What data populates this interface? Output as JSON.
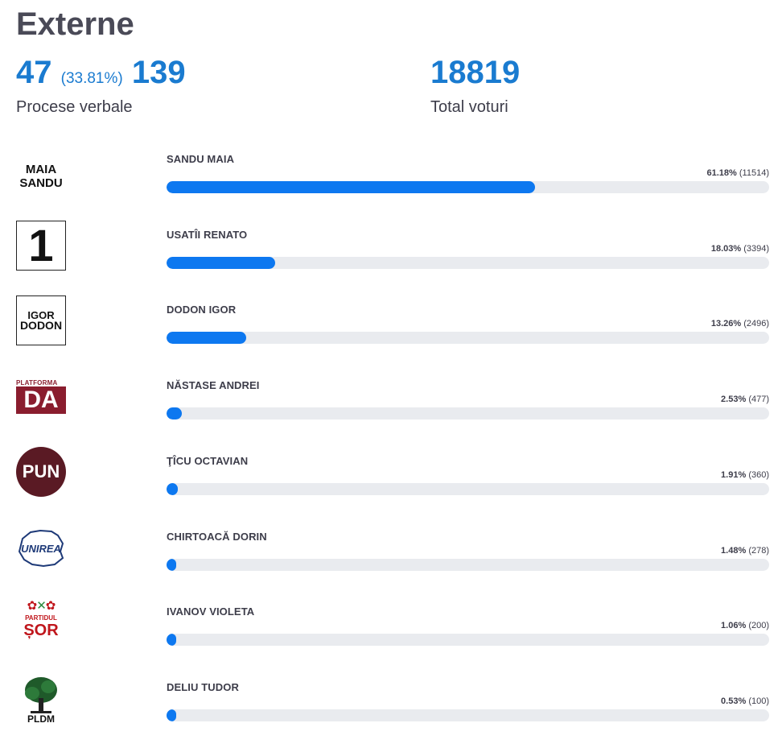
{
  "title": "Externe",
  "stats": {
    "processed": "47",
    "processed_pct": "(33.81%)",
    "total_pv": "139",
    "pv_label": "Procese verbale",
    "total_votes": "18819",
    "votes_label": "Total voturi"
  },
  "colors": {
    "accent": "#1a7bd0",
    "bar_fill": "#0d78f0",
    "bar_track": "#e9ebef"
  },
  "candidates": [
    {
      "name": "SANDU MAIA",
      "pct": "61.18%",
      "votes": "(11514)",
      "share": 61.18,
      "logo": {
        "icon": "maia-sandu-logo",
        "lines": [
          "MAIA",
          "SANDU"
        ]
      }
    },
    {
      "name": "USATÎI RENATO",
      "pct": "18.03%",
      "votes": "(3394)",
      "share": 18.03,
      "logo": {
        "icon": "number-one-logo",
        "text": "1"
      }
    },
    {
      "name": "DODON IGOR",
      "pct": "13.26%",
      "votes": "(2496)",
      "share": 13.26,
      "logo": {
        "icon": "igor-dodon-logo",
        "lines": [
          "IGOR",
          "DODON"
        ]
      }
    },
    {
      "name": "NĂSTASE ANDREI",
      "pct": "2.53%",
      "votes": "(477)",
      "share": 2.53,
      "logo": {
        "icon": "platforma-da-logo",
        "top": "PLATFORMA",
        "text": "DA"
      }
    },
    {
      "name": "ŢÎCU OCTAVIAN",
      "pct": "1.91%",
      "votes": "(360)",
      "share": 1.91,
      "logo": {
        "icon": "pun-logo",
        "text": "PUN"
      }
    },
    {
      "name": "CHIRTOACĂ DORIN",
      "pct": "1.48%",
      "votes": "(278)",
      "share": 1.48,
      "logo": {
        "icon": "unirea-logo",
        "text": "UNIREA"
      }
    },
    {
      "name": "IVANOV VIOLETA",
      "pct": "1.06%",
      "votes": "(200)",
      "share": 1.06,
      "logo": {
        "icon": "partidul-sor-logo",
        "top": "PARTIDUL",
        "text": "ȘOR"
      }
    },
    {
      "name": "DELIU TUDOR",
      "pct": "0.53%",
      "votes": "(100)",
      "share": 0.53,
      "logo": {
        "icon": "pldm-tree-logo",
        "text": "PLDM"
      }
    }
  ]
}
